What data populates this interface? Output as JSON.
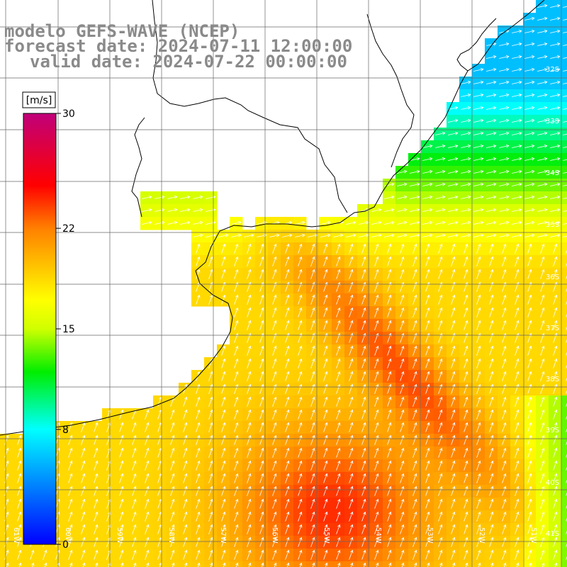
{
  "title": {
    "line1": "modelo GEFS-WAVE (NCEP)",
    "line2": "forecast date: 2024-07-11 12:00:00",
    "line3": "valid date: 2024-07-22 00:00:00"
  },
  "colorbar": {
    "unit": "[m/s]",
    "ticks": [
      {
        "value": 30,
        "label": "30"
      },
      {
        "value": 22,
        "label": "22"
      },
      {
        "value": 15,
        "label": "15"
      },
      {
        "value": 8,
        "label": "8"
      },
      {
        "value": 0,
        "label": "0"
      }
    ],
    "range": [
      0,
      30
    ],
    "stops": [
      {
        "value": 0,
        "color": "#0000ff"
      },
      {
        "value": 8,
        "color": "#00ffff"
      },
      {
        "value": 12,
        "color": "#00ee00"
      },
      {
        "value": 15,
        "color": "#d0ff00"
      },
      {
        "value": 17,
        "color": "#ffff00"
      },
      {
        "value": 22,
        "color": "#ff8000"
      },
      {
        "value": 25,
        "color": "#ff0000"
      },
      {
        "value": 30,
        "color": "#c0007a"
      }
    ]
  },
  "lat_labels": [
    "32S",
    "33S",
    "34S",
    "35S",
    "36S",
    "37S",
    "38S",
    "39S",
    "40S",
    "41S"
  ],
  "lon_labels": [
    "61W",
    "60W",
    "59W",
    "58W",
    "57W",
    "56W",
    "55W",
    "54W",
    "53W",
    "52W",
    "51W"
  ],
  "axes": {
    "lon_range": [
      -61.2,
      -50.3
    ],
    "lat_range": [
      -41.4,
      -31.0
    ]
  },
  "grid": true,
  "field": {
    "variable": "wind speed",
    "direction": "arrows pointing toward north-northeast"
  }
}
